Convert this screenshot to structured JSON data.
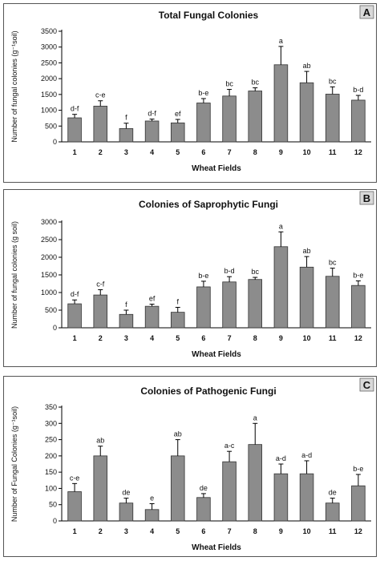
{
  "chart_data": [
    {
      "type": "bar",
      "panel_label": "A",
      "title": "Total Fungal Colonies",
      "xlabel": "Wheat Fields",
      "ylabel": "Number of fungal colonies (g⁻¹soil)",
      "ylim": [
        0,
        3500
      ],
      "yticks": [
        0,
        500,
        1000,
        1500,
        2000,
        2500,
        3000,
        3500
      ],
      "categories": [
        "1",
        "2",
        "3",
        "4",
        "5",
        "6",
        "7",
        "8",
        "9",
        "10",
        "11",
        "12"
      ],
      "values": [
        760,
        1130,
        420,
        660,
        600,
        1230,
        1450,
        1610,
        2440,
        1870,
        1510,
        1320
      ],
      "errors": [
        110,
        170,
        170,
        60,
        110,
        140,
        210,
        100,
        580,
        360,
        230,
        150
      ],
      "letters": [
        "d-f",
        "c-e",
        "f",
        "d-f",
        "ef",
        "b-e",
        "bc",
        "bc",
        "a",
        "ab",
        "bc",
        "b-d"
      ],
      "color": "#8c8c8c"
    },
    {
      "type": "bar",
      "panel_label": "B",
      "title": "Colonies of Saprophytic Fungi",
      "xlabel": "Wheat Fields",
      "ylabel": "Number of fungal colonies (g soil)",
      "ylim": [
        0,
        3000
      ],
      "yticks": [
        0,
        500,
        1000,
        1500,
        2000,
        2500,
        3000
      ],
      "categories": [
        "1",
        "2",
        "3",
        "4",
        "5",
        "6",
        "7",
        "8",
        "9",
        "10",
        "11",
        "12"
      ],
      "values": [
        680,
        930,
        380,
        610,
        440,
        1160,
        1300,
        1370,
        2300,
        1720,
        1460,
        1200
      ],
      "errors": [
        110,
        150,
        120,
        60,
        140,
        160,
        150,
        60,
        420,
        300,
        230,
        130
      ],
      "letters": [
        "d-f",
        "c-f",
        "f",
        "ef",
        "f",
        "b-e",
        "b-d",
        "bc",
        "a",
        "ab",
        "bc",
        "b-e"
      ],
      "color": "#8c8c8c"
    },
    {
      "type": "bar",
      "panel_label": "C",
      "title": "Colonies of Pathogenic Fungi",
      "xlabel": "Wheat Fields",
      "ylabel": "Number of Fungal Colonies (g⁻¹soil)",
      "ylim": [
        0,
        350
      ],
      "yticks": [
        0,
        50,
        100,
        150,
        200,
        250,
        300,
        350
      ],
      "categories": [
        "1",
        "2",
        "3",
        "4",
        "5",
        "6",
        "7",
        "8",
        "9",
        "10",
        "11",
        "12"
      ],
      "values": [
        90,
        200,
        55,
        35,
        200,
        72,
        182,
        235,
        145,
        145,
        55,
        108
      ],
      "errors": [
        25,
        30,
        15,
        18,
        50,
        12,
        32,
        65,
        30,
        40,
        15,
        35
      ],
      "letters": [
        "c-e",
        "ab",
        "de",
        "e",
        "ab",
        "de",
        "a-c",
        "a",
        "a-d",
        "a-d",
        "de",
        "b-e"
      ],
      "color": "#8c8c8c"
    }
  ]
}
